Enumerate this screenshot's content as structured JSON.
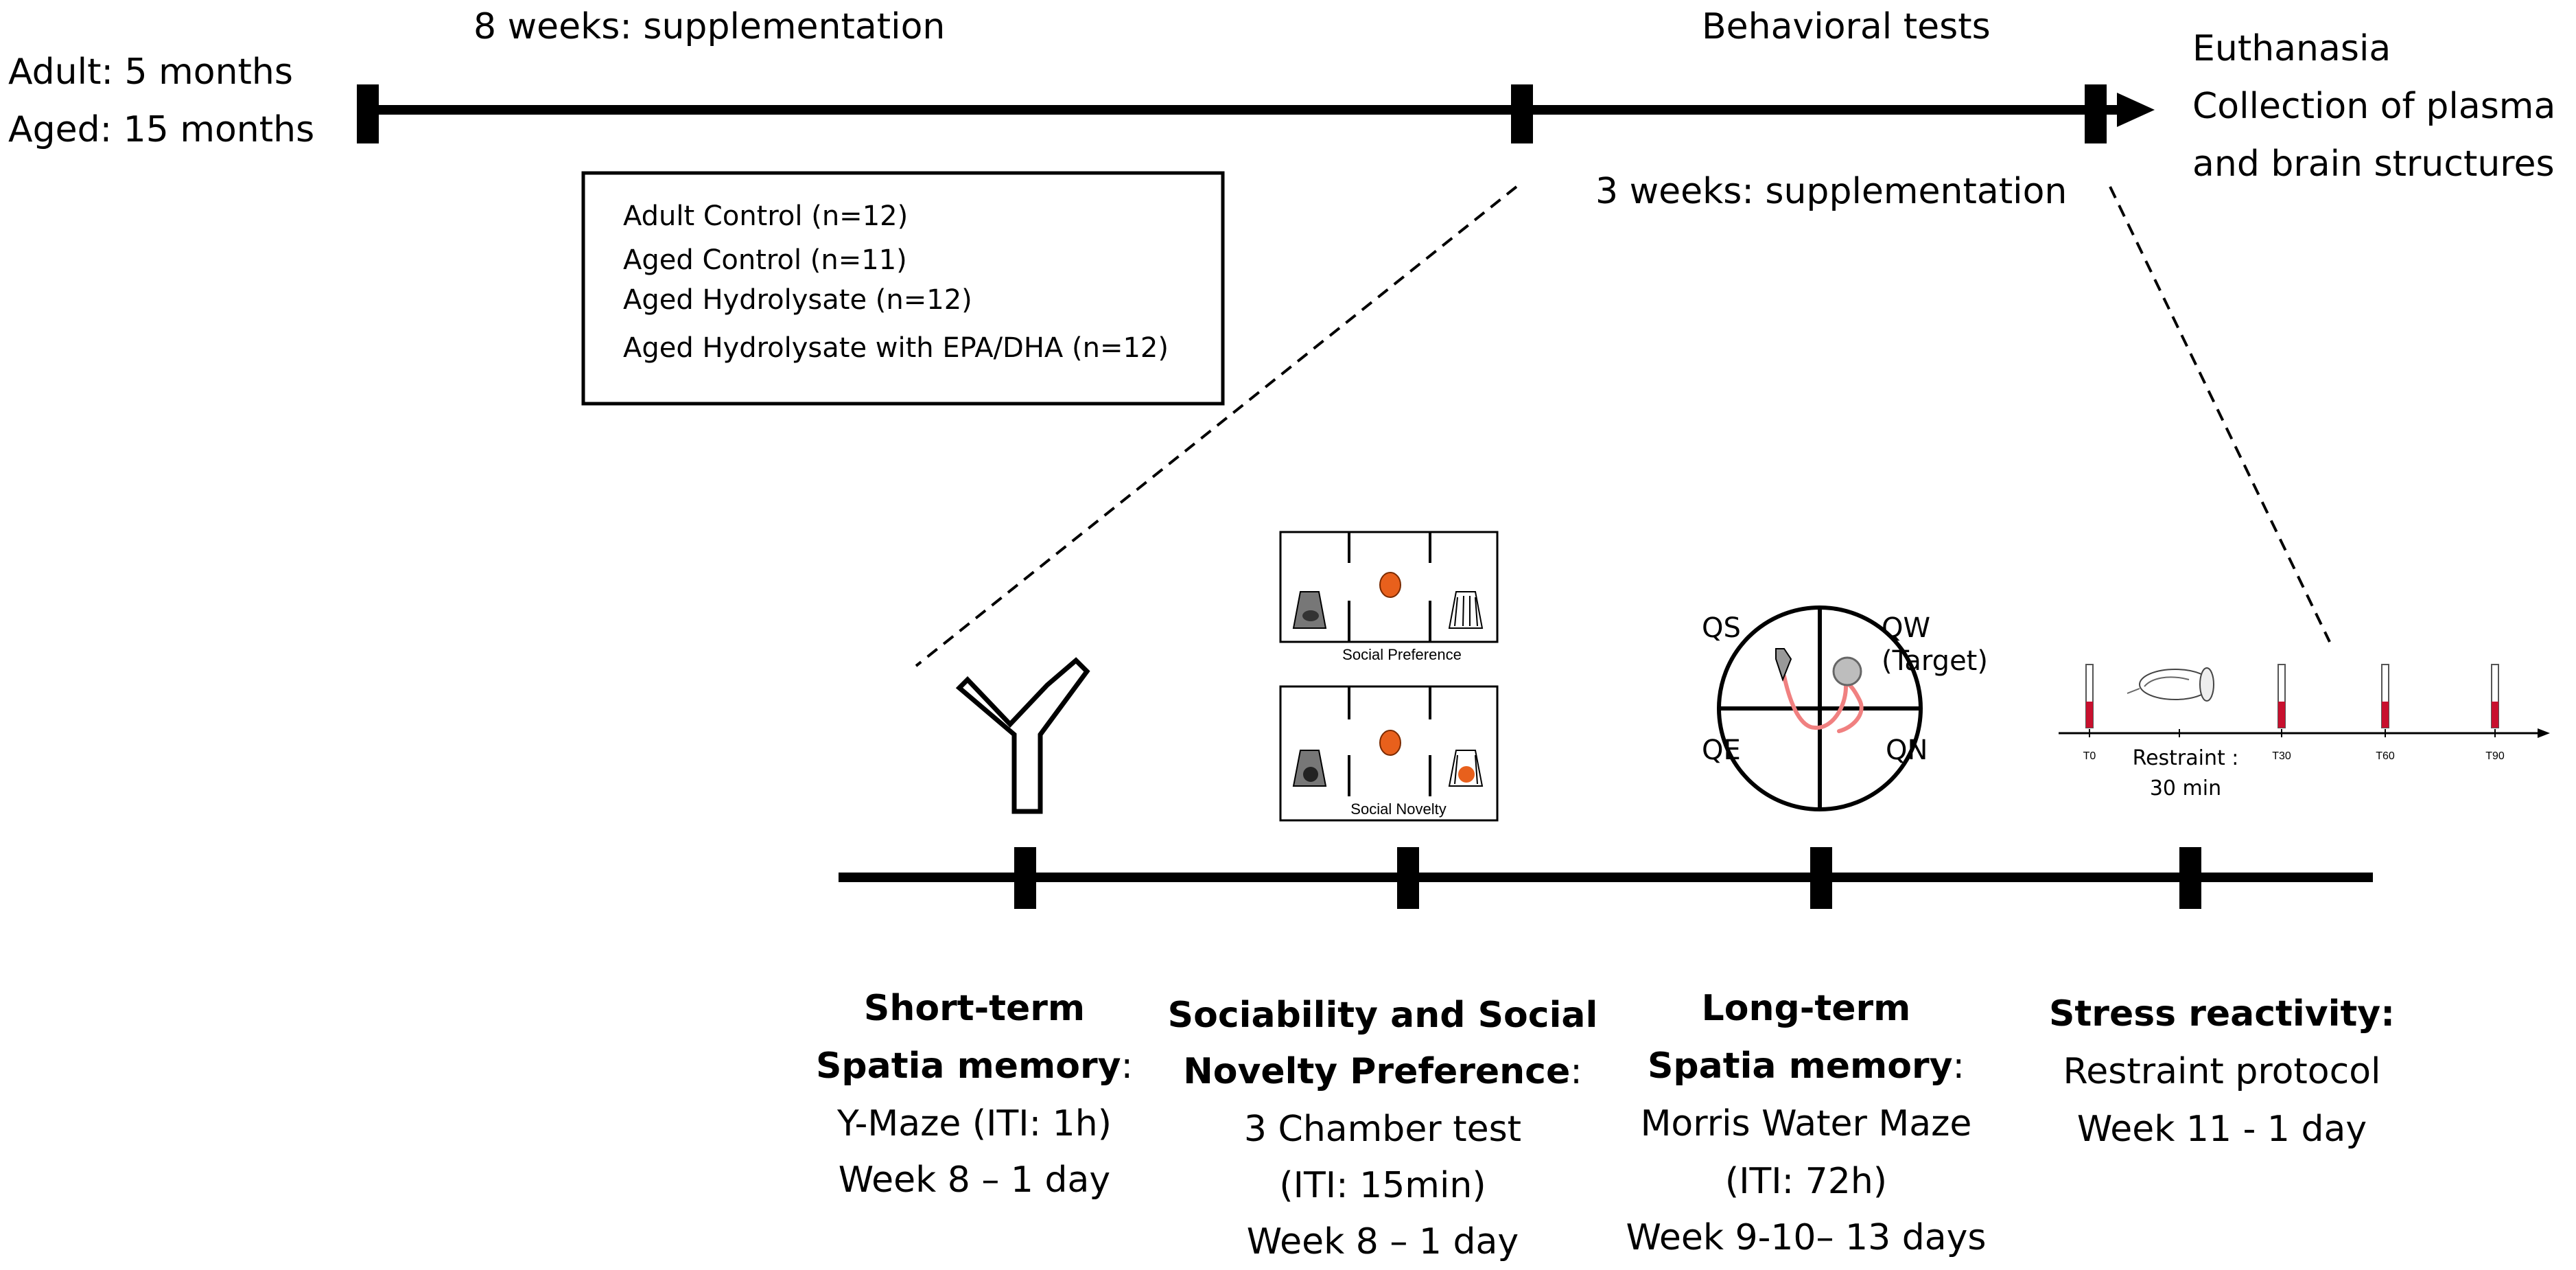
{
  "top_timeline": {
    "start_label_1": "Adult: 5 months",
    "start_label_2": "Aged: 15 months",
    "phase1_label": "8 weeks: supplementation",
    "phase2_top_label": "Behavioral tests",
    "phase2_bottom_label": "3 weeks: supplementation",
    "end_label_1": "Euthanasia",
    "end_label_2": "Collection of plasma",
    "end_label_3": "and brain structures"
  },
  "groups_box": {
    "items": [
      "Adult Control (n=12)",
      "Aged Control (n=11)",
      "Aged Hydrolysate (n=12)",
      "Aged Hydrolysate with EPA/DHA (n=12)"
    ]
  },
  "icons": {
    "three_chamber": {
      "top_caption": "Social Preference",
      "bottom_caption": "Social Novelty"
    },
    "water_maze": {
      "qs": "QS",
      "qw": "QW",
      "target": "(Target)",
      "qe": "QE",
      "qn": "QN"
    },
    "stress_timeline": {
      "t0": "T0",
      "t30": "T30",
      "t60": "T60",
      "t90": "T90",
      "restraint_1": "Restraint :",
      "restraint_2": "30 min"
    }
  },
  "tests": [
    {
      "title_1": "Short-term",
      "title_2": "Spatia  memory",
      "suffix": ":",
      "line_1": "Y-Maze (ITI: 1h)",
      "line_2": "Week 8 – 1 day"
    },
    {
      "title_1": "Sociability and Social",
      "title_2": "Novelty Preference",
      "suffix": ":",
      "line_1": "3 Chamber test",
      "line_2": "(ITI: 15min)",
      "line_3": "Week 8 – 1 day"
    },
    {
      "title_1": "Long-term",
      "title_2": "Spatia  memory",
      "suffix": ":",
      "line_1": "Morris Water Maze",
      "line_2": "(ITI: 72h)",
      "line_3": "Week 9-10– 13 days"
    },
    {
      "title_1": "Stress reactivity:",
      "line_1": "Restraint protocol",
      "line_2": "Week 11 - 1 day"
    }
  ],
  "colors": {
    "line": "#000000",
    "mouse_orange": "#e8601c",
    "blood_red": "#c8102e",
    "maze_path": "#f08080",
    "cup_gray": "#555555"
  }
}
